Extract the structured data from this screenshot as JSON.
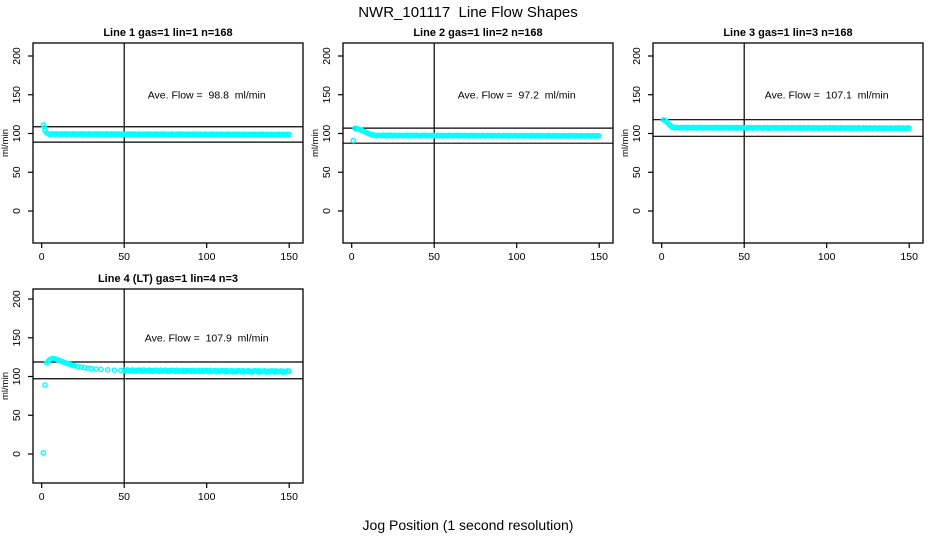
{
  "window": {
    "title": "NWR_101117  Line Flow Shapes"
  },
  "chart_data": {
    "type": "scatter",
    "title": "NWR_101117  Line Flow Shapes",
    "xlabel": "Jog Position (1 second resolution)",
    "ylabel": "ml/min",
    "x_ticks": [
      0,
      50,
      100,
      150
    ],
    "y_ticks": [
      0,
      50,
      100,
      150,
      200
    ],
    "xlim": [
      -5,
      158
    ],
    "ylim": [
      -41,
      217
    ],
    "grid": false,
    "legend": "none",
    "point_color": "#00ffff",
    "axis_color": "#000000",
    "panels": [
      {
        "title": "Line 1 gas=1 lin=1 n=168",
        "annotation": "Ave. Flow =  98.8  ml/min",
        "ave_flow": 98.8,
        "ref_lines": [
          108.7,
          88.9
        ],
        "vline_x": 50,
        "transient_points": [
          [
            1,
            111
          ],
          [
            1.6,
            108.2
          ],
          [
            2,
            103.8
          ],
          [
            3,
            101
          ],
          [
            4,
            99.8
          ]
        ],
        "steady": {
          "from_x": 5,
          "to_x": 150,
          "value_start": 99.3,
          "value_end": 98.7,
          "jitter": [
            0,
            -0.4,
            0.3,
            -0.2,
            0.4,
            -0.5,
            0.2,
            0.1,
            -0.3,
            0.4
          ]
        }
      },
      {
        "title": "Line 2 gas=1 lin=2 n=168",
        "annotation": "Ave. Flow =  97.2  ml/min",
        "ave_flow": 97.2,
        "ref_lines": [
          106.9,
          87.5
        ],
        "vline_x": 50,
        "transient_points": [
          [
            1,
            91
          ],
          [
            2,
            106.8
          ],
          [
            3,
            106.4
          ],
          [
            4,
            105.8
          ],
          [
            5,
            105
          ],
          [
            6,
            104.2
          ],
          [
            7,
            103.2
          ],
          [
            8,
            102.2
          ],
          [
            9,
            101.2
          ],
          [
            10,
            100.2
          ],
          [
            11,
            99.3
          ],
          [
            12,
            98.6
          ],
          [
            13,
            98.1
          ]
        ],
        "steady": {
          "from_x": 14,
          "to_x": 150,
          "value_start": 97.5,
          "value_end": 96.9,
          "jitter": [
            0,
            -0.4,
            0.3,
            -0.2,
            0.4,
            -0.5,
            0.2,
            0.1,
            -0.3,
            0.4
          ]
        }
      },
      {
        "title": "Line 3 gas=1 lin=3 n=168",
        "annotation": "Ave. Flow =  107.1  ml/min",
        "ave_flow": 107.1,
        "ref_lines": [
          117.8,
          96.4
        ],
        "vline_x": 50,
        "transient_points": [
          [
            1,
            117.5
          ],
          [
            2,
            117
          ],
          [
            3,
            115.2
          ],
          [
            4,
            112.8
          ],
          [
            5,
            110.6
          ],
          [
            6,
            109
          ],
          [
            7,
            108.2
          ]
        ],
        "steady": {
          "from_x": 8,
          "to_x": 150,
          "value_start": 107.6,
          "value_end": 106.9,
          "jitter": [
            0,
            -0.4,
            0.3,
            -0.2,
            0.4,
            -0.5,
            0.2,
            0.1,
            -0.3,
            0.4
          ]
        }
      },
      {
        "title": "Line 4 (LT) gas=1 lin=4 n=3",
        "annotation": "Ave. Flow =  107.9  ml/min",
        "ave_flow": 107.9,
        "ref_lines": [
          118.7,
          97.1
        ],
        "vline_x": 50,
        "transient_points": [
          [
            1,
            1.5
          ],
          [
            2,
            89
          ],
          [
            3,
            117.5
          ],
          [
            4,
            120
          ],
          [
            5,
            121.8
          ],
          [
            6,
            122.8
          ],
          [
            7,
            123
          ],
          [
            8,
            122.7
          ],
          [
            9,
            122.2
          ],
          [
            10,
            121.4
          ],
          [
            11,
            120.5
          ],
          [
            12,
            119.6
          ],
          [
            13,
            118.8
          ],
          [
            14,
            118
          ],
          [
            15,
            117.2
          ],
          [
            16,
            116.4
          ],
          [
            17,
            115.7
          ],
          [
            18,
            115
          ],
          [
            19,
            114.4
          ],
          [
            20,
            113.8
          ],
          [
            22,
            112.9
          ],
          [
            24,
            112.1
          ],
          [
            26,
            111.4
          ],
          [
            28,
            110.8
          ],
          [
            30,
            110.3
          ],
          [
            33,
            109.6
          ],
          [
            36,
            109.1
          ],
          [
            40,
            108.6
          ],
          [
            44,
            108.2
          ],
          [
            48,
            107.9
          ]
        ],
        "steady": {
          "from_x": 50,
          "to_x": 150,
          "value_start": 107.7,
          "value_end": 106.4,
          "jitter": [
            0.6,
            -0.8,
            0.9,
            -0.5,
            0.1,
            0.8,
            -0.9,
            0.4,
            -0.6,
            0.7
          ]
        }
      }
    ]
  }
}
